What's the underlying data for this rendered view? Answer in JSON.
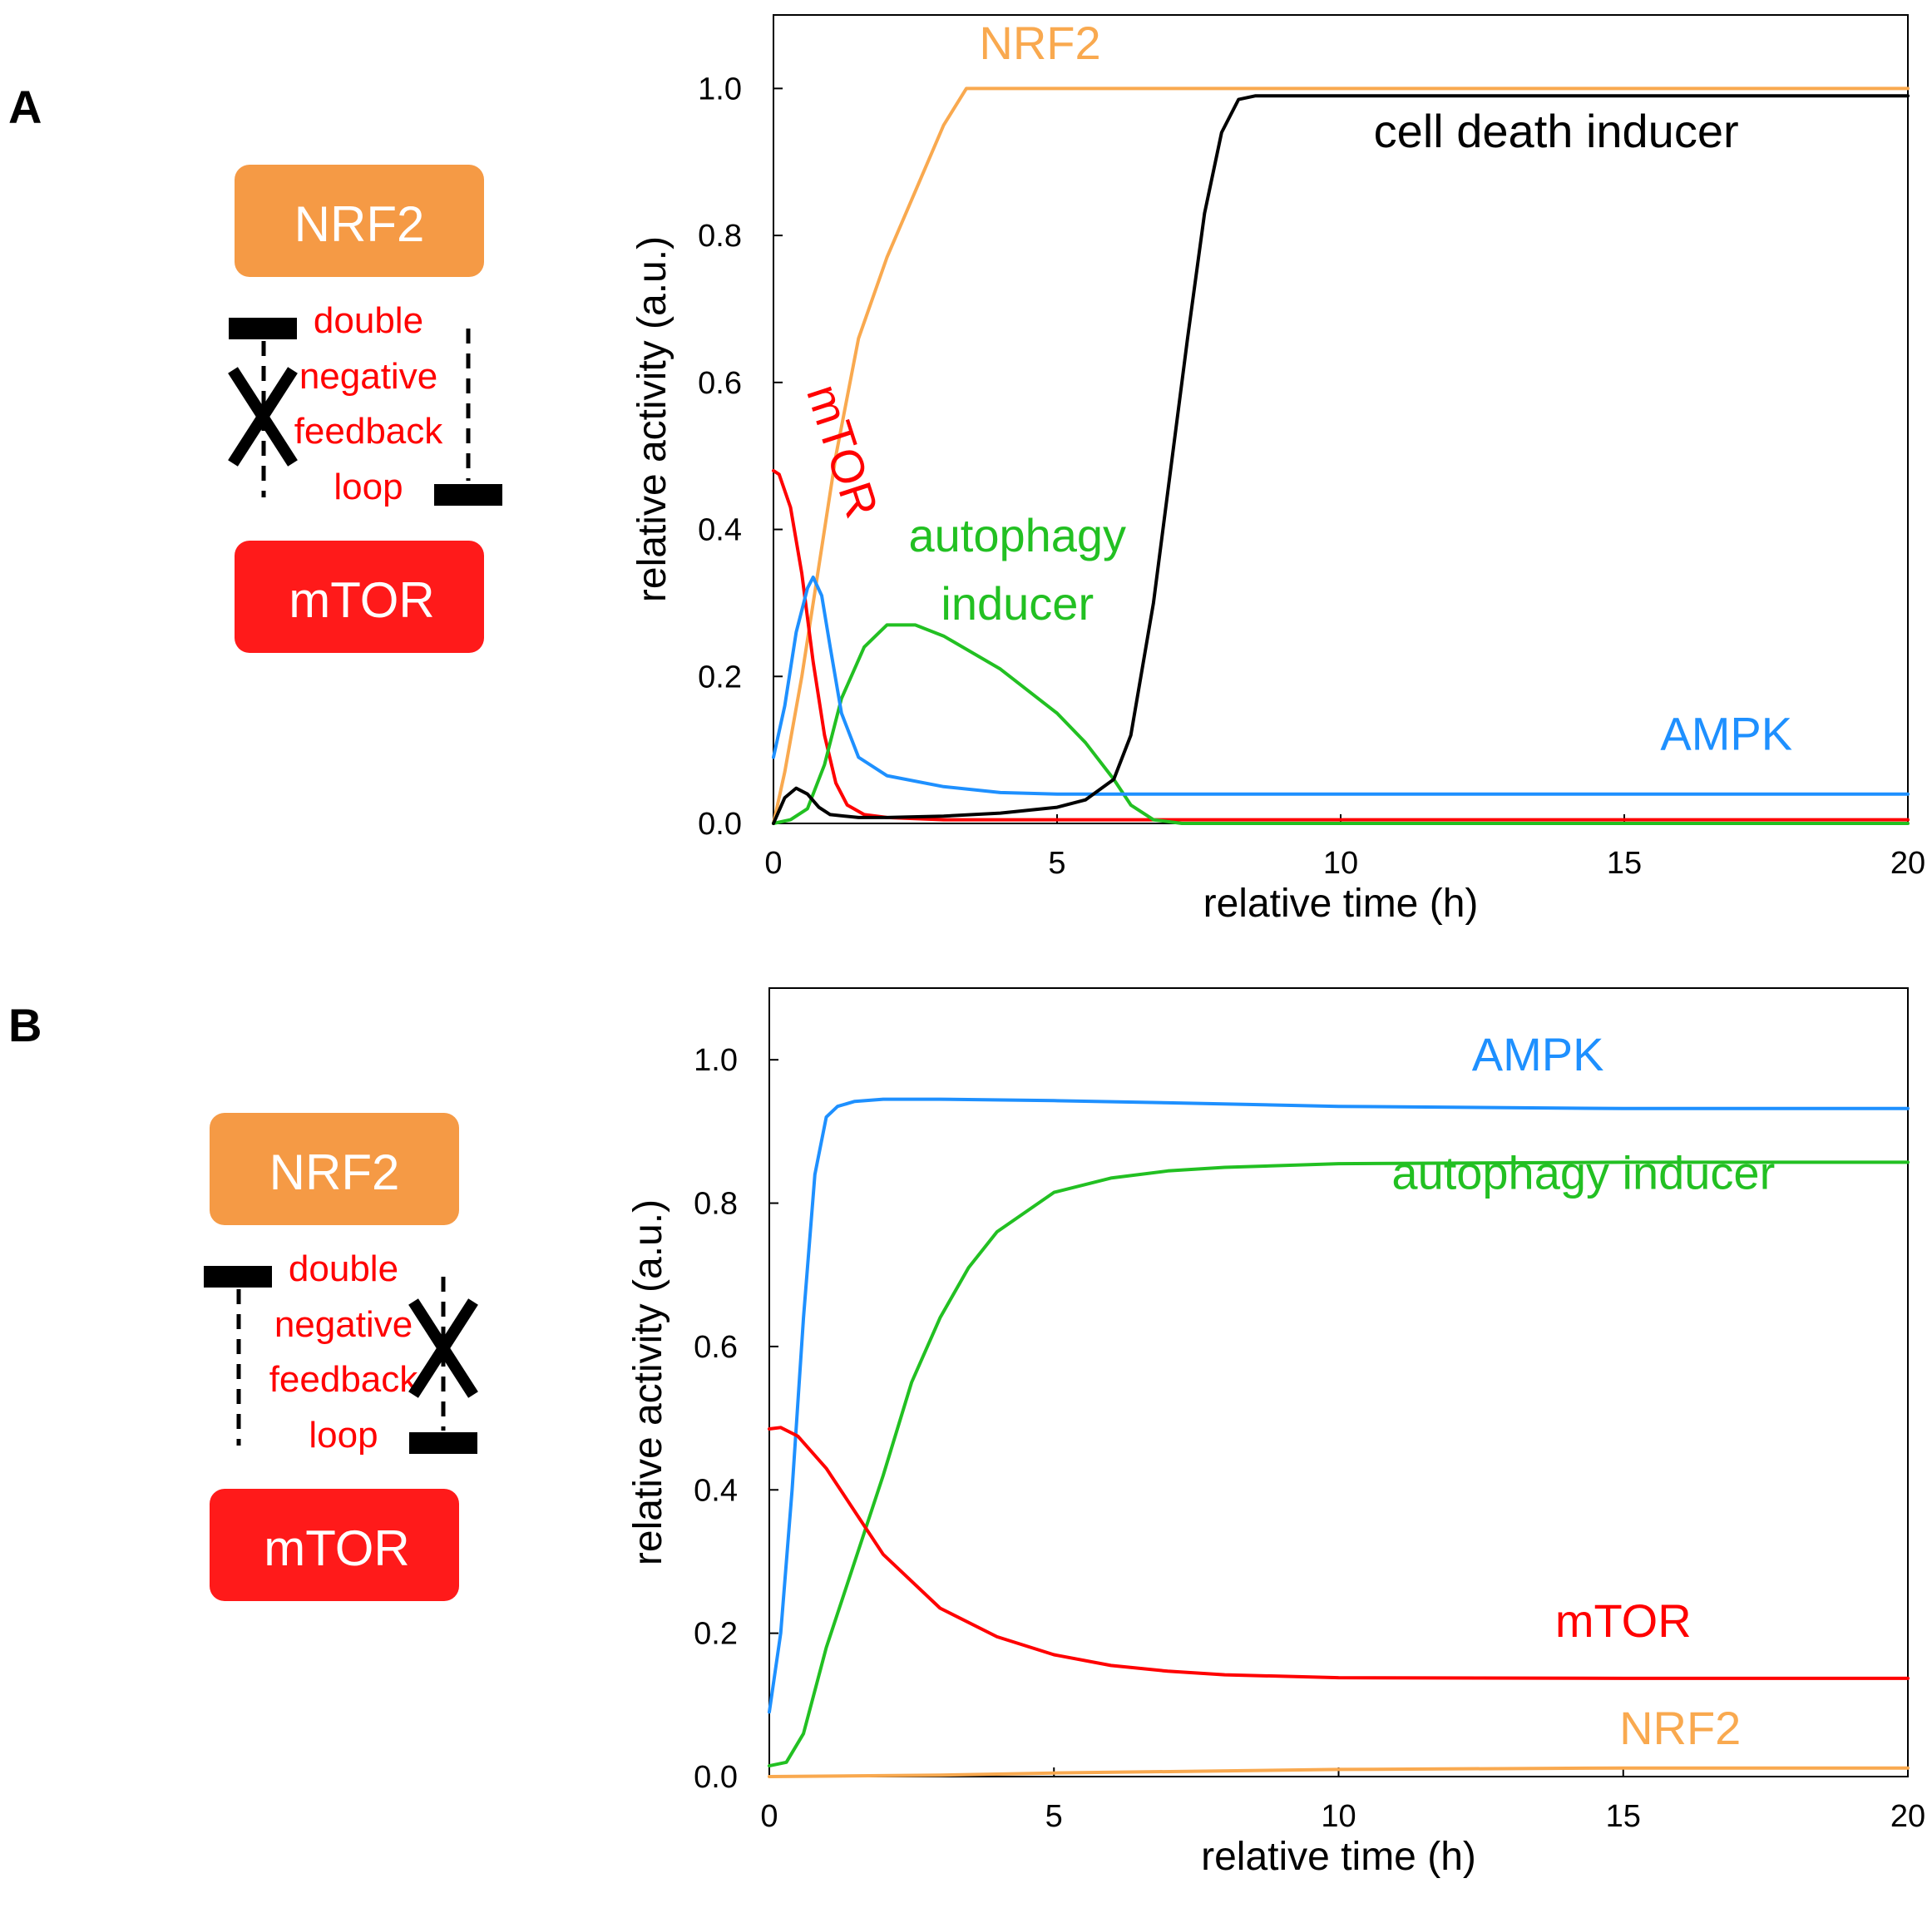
{
  "panels": [
    {
      "letter": "A",
      "diagram": {
        "top_box": "NRF2",
        "bottom_box": "mTOR",
        "loop_text": [
          "double",
          "negative",
          "feedback",
          "loop"
        ],
        "cross_mark": "X",
        "blocked_side": "left"
      }
    },
    {
      "letter": "B",
      "diagram": {
        "top_box": "NRF2",
        "bottom_box": "mTOR",
        "loop_text": [
          "double",
          "negative",
          "feedback",
          "loop"
        ],
        "cross_mark": "X",
        "blocked_side": "right"
      }
    }
  ],
  "colors": {
    "NRF2": "#f9a94f",
    "mTOR": "#ff0000",
    "AMPK": "#1e90ff",
    "autophagy": "#22c022",
    "cell_death": "#000000",
    "box_nrf2": "#f59a45",
    "box_mtor": "#ff1a1a"
  },
  "chart_data": [
    {
      "type": "line",
      "title": "",
      "xlabel": "relative time (h)",
      "ylabel": "relative activity (a.u.)",
      "xlim": [
        0,
        20
      ],
      "ylim": [
        0,
        1.1
      ],
      "xticks": [
        0,
        5,
        10,
        15,
        20
      ],
      "yticks": [
        0.0,
        0.2,
        0.4,
        0.6,
        0.8,
        1.0
      ],
      "xtick_labels": [
        "0",
        "5",
        "10",
        "15",
        "20"
      ],
      "ytick_labels": [
        "0.0",
        "0.2",
        "0.4",
        "0.6",
        "0.8",
        "1.0"
      ],
      "grid": false,
      "series": [
        {
          "name": "NRF2",
          "label": "NRF2",
          "color": "#f9a94f",
          "label_pos": [
            4.7,
            1.04
          ],
          "label_rotation": 0,
          "x": [
            0,
            0.2,
            0.5,
            0.8,
            1.1,
            1.5,
            2.0,
            2.5,
            3.0,
            3.4,
            5,
            10,
            15,
            20
          ],
          "y": [
            0.0,
            0.07,
            0.2,
            0.35,
            0.5,
            0.66,
            0.77,
            0.86,
            0.95,
            1.0,
            1.0,
            1.0,
            1.0,
            1.0
          ]
        },
        {
          "name": "mTOR",
          "label": "mTOR",
          "color": "#ff0000",
          "label_pos": [
            0.95,
            0.5
          ],
          "label_rotation": 72,
          "x": [
            0,
            0.1,
            0.3,
            0.5,
            0.7,
            0.9,
            1.1,
            1.3,
            1.6,
            2.0,
            3,
            5,
            10,
            20
          ],
          "y": [
            0.48,
            0.475,
            0.43,
            0.34,
            0.22,
            0.12,
            0.055,
            0.025,
            0.012,
            0.008,
            0.005,
            0.005,
            0.005,
            0.005
          ]
        },
        {
          "name": "autophagy inducer",
          "label": "autophagy inducer",
          "color": "#22c022",
          "label_pos": [
            4.3,
            0.37
          ],
          "label_rotation": 0,
          "x": [
            0,
            0.3,
            0.6,
            0.9,
            1.2,
            1.6,
            2.0,
            2.5,
            3.0,
            4.0,
            5.0,
            5.5,
            6.0,
            6.3,
            6.7,
            7.2,
            10,
            20
          ],
          "y": [
            0.0,
            0.005,
            0.02,
            0.08,
            0.17,
            0.24,
            0.27,
            0.27,
            0.255,
            0.21,
            0.15,
            0.11,
            0.06,
            0.025,
            0.005,
            0.0,
            0.0,
            0.0
          ]
        },
        {
          "name": "AMPK",
          "label": "AMPK",
          "color": "#1e90ff",
          "label_pos": [
            16.8,
            0.1
          ],
          "label_rotation": 0,
          "x": [
            0,
            0.2,
            0.4,
            0.6,
            0.7,
            0.85,
            1.0,
            1.2,
            1.5,
            2.0,
            3.0,
            4.0,
            5,
            10,
            20
          ],
          "y": [
            0.09,
            0.16,
            0.26,
            0.32,
            0.335,
            0.31,
            0.24,
            0.15,
            0.09,
            0.065,
            0.05,
            0.042,
            0.04,
            0.04,
            0.04
          ]
        },
        {
          "name": "cell death inducer",
          "label": "cell death inducer",
          "color": "#000000",
          "label_pos": [
            13.8,
            0.92
          ],
          "label_rotation": 0,
          "x": [
            0,
            0.2,
            0.4,
            0.6,
            0.8,
            1.0,
            1.5,
            2.0,
            3.0,
            4.0,
            5.0,
            5.5,
            6.0,
            6.3,
            6.7,
            7.0,
            7.3,
            7.6,
            7.9,
            8.2,
            8.5,
            9,
            10,
            20
          ],
          "y": [
            0.0,
            0.035,
            0.048,
            0.04,
            0.022,
            0.012,
            0.008,
            0.008,
            0.01,
            0.014,
            0.022,
            0.032,
            0.06,
            0.12,
            0.3,
            0.48,
            0.66,
            0.83,
            0.94,
            0.985,
            0.99,
            0.99,
            0.99,
            0.99
          ]
        }
      ]
    },
    {
      "type": "line",
      "title": "",
      "xlabel": "relative time (h)",
      "ylabel": "relative activity (a.u.)",
      "xlim": [
        0,
        20
      ],
      "ylim": [
        0,
        1.1
      ],
      "xticks": [
        0,
        5,
        10,
        15,
        20
      ],
      "yticks": [
        0.0,
        0.2,
        0.4,
        0.6,
        0.8,
        1.0
      ],
      "xtick_labels": [
        "0",
        "5",
        "10",
        "15",
        "20"
      ],
      "ytick_labels": [
        "0.0",
        "0.2",
        "0.4",
        "0.6",
        "0.8",
        "1.0"
      ],
      "grid": false,
      "series": [
        {
          "name": "AMPK",
          "label": "AMPK",
          "color": "#1e90ff",
          "label_pos": [
            13.5,
            0.985
          ],
          "label_rotation": 0,
          "x": [
            0,
            0.2,
            0.4,
            0.6,
            0.8,
            1.0,
            1.2,
            1.5,
            2.0,
            3.0,
            5.0,
            7.0,
            10,
            15,
            20
          ],
          "y": [
            0.09,
            0.2,
            0.4,
            0.64,
            0.84,
            0.92,
            0.935,
            0.942,
            0.945,
            0.945,
            0.943,
            0.94,
            0.935,
            0.932,
            0.932
          ]
        },
        {
          "name": "autophagy inducer",
          "label": "autophagy inducer",
          "color": "#22c022",
          "label_pos": [
            14.3,
            0.82
          ],
          "label_rotation": 0,
          "x": [
            0,
            0.3,
            0.6,
            1.0,
            1.5,
            2.0,
            2.5,
            3.0,
            3.5,
            4.0,
            5.0,
            6.0,
            7.0,
            8.0,
            10,
            15,
            20
          ],
          "y": [
            0.015,
            0.02,
            0.06,
            0.18,
            0.3,
            0.42,
            0.55,
            0.64,
            0.71,
            0.76,
            0.815,
            0.835,
            0.845,
            0.85,
            0.855,
            0.857,
            0.857
          ]
        },
        {
          "name": "mTOR",
          "label": "mTOR",
          "color": "#ff0000",
          "label_pos": [
            15.0,
            0.195
          ],
          "label_rotation": 0,
          "x": [
            0,
            0.2,
            0.5,
            1.0,
            1.5,
            2.0,
            3.0,
            4.0,
            5.0,
            6.0,
            7.0,
            8.0,
            10,
            15,
            20
          ],
          "y": [
            0.485,
            0.487,
            0.475,
            0.43,
            0.37,
            0.31,
            0.235,
            0.195,
            0.17,
            0.155,
            0.147,
            0.142,
            0.138,
            0.137,
            0.137
          ]
        },
        {
          "name": "NRF2",
          "label": "NRF2",
          "color": "#f9a94f",
          "label_pos": [
            16.0,
            0.045
          ],
          "label_rotation": 0,
          "x": [
            0,
            3,
            5,
            10,
            15,
            20
          ],
          "y": [
            0.0,
            0.002,
            0.005,
            0.01,
            0.012,
            0.012
          ]
        }
      ]
    }
  ]
}
